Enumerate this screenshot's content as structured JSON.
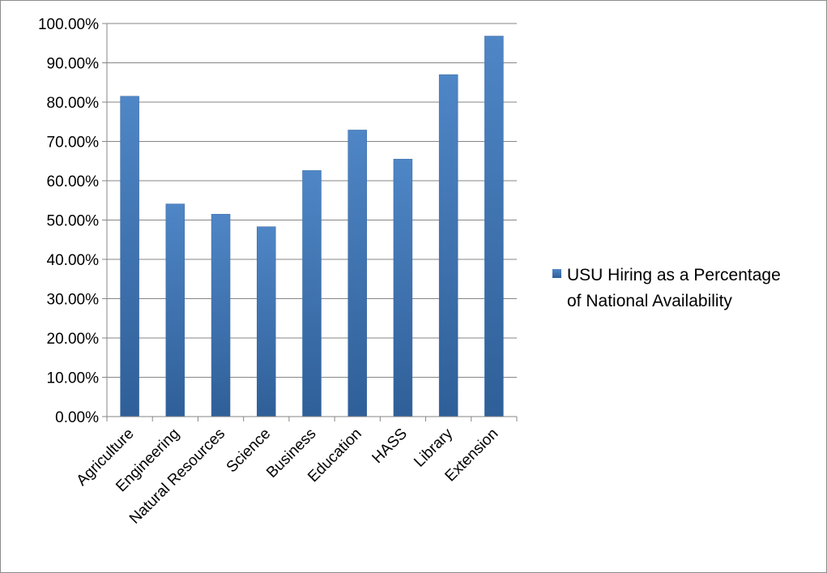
{
  "chart_data": {
    "type": "bar",
    "categories": [
      "Agriculture",
      "Engineering",
      "Natural Resources",
      "Science",
      "Business",
      "Education",
      "HASS",
      "Library",
      "Extension"
    ],
    "series": [
      {
        "name": "USU Hiring as a Percentage of National Availability",
        "values": [
          0.815,
          0.541,
          0.515,
          0.483,
          0.626,
          0.729,
          0.655,
          0.87,
          0.968
        ],
        "color": "#4a7ebb"
      }
    ],
    "ylim": [
      0,
      1
    ],
    "yticks": [
      "0.00%",
      "10.00%",
      "20.00%",
      "30.00%",
      "40.00%",
      "50.00%",
      "60.00%",
      "70.00%",
      "80.00%",
      "90.00%",
      "100.00%"
    ],
    "title": "",
    "xlabel": "",
    "ylabel": "",
    "grid": true,
    "legend": {
      "position": "right",
      "lines": [
        "USU Hiring as a Percentage",
        "of National Availability"
      ]
    }
  }
}
